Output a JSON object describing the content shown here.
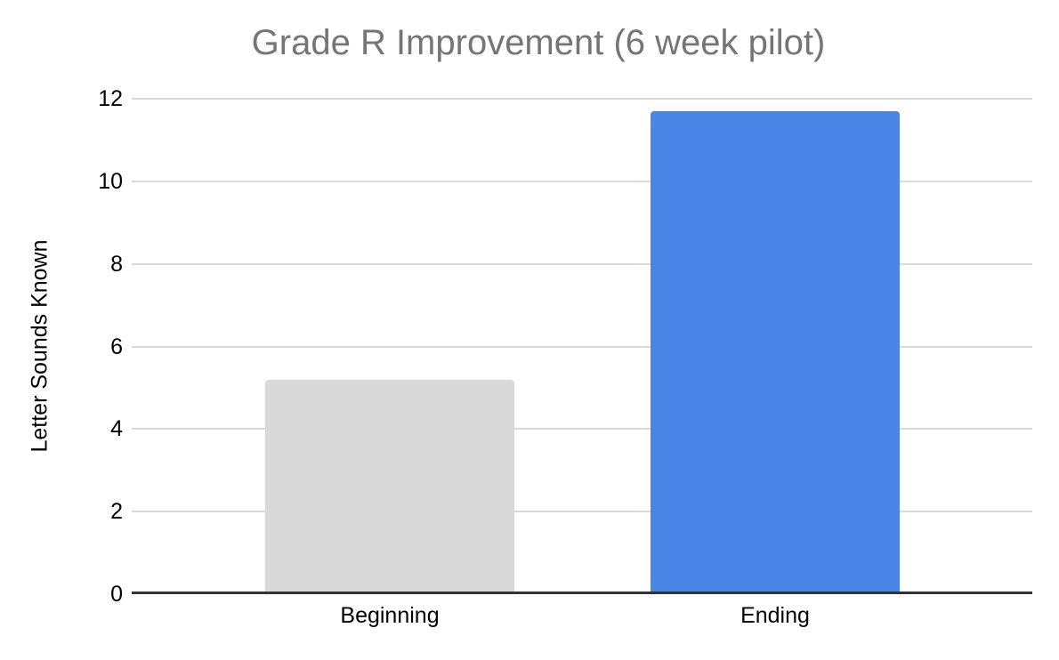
{
  "chart_data": {
    "type": "bar",
    "title": "Grade R Improvement (6 week pilot)",
    "xlabel": "",
    "ylabel": "Letter Sounds Known",
    "categories": [
      "Beginning",
      "Ending"
    ],
    "values": [
      5.17,
      11.67
    ],
    "ylim": [
      0,
      12
    ],
    "yticks": [
      0,
      2,
      4,
      6,
      8,
      10,
      12
    ],
    "grid": true,
    "legend": false,
    "bar_colors": [
      "#d9d9d9",
      "#4a86e8"
    ]
  },
  "colors": {
    "background": "#ffffff",
    "title_text": "#757575",
    "axis_text": "#000000",
    "gridline": "#dadada",
    "axis_line": "#333333"
  }
}
